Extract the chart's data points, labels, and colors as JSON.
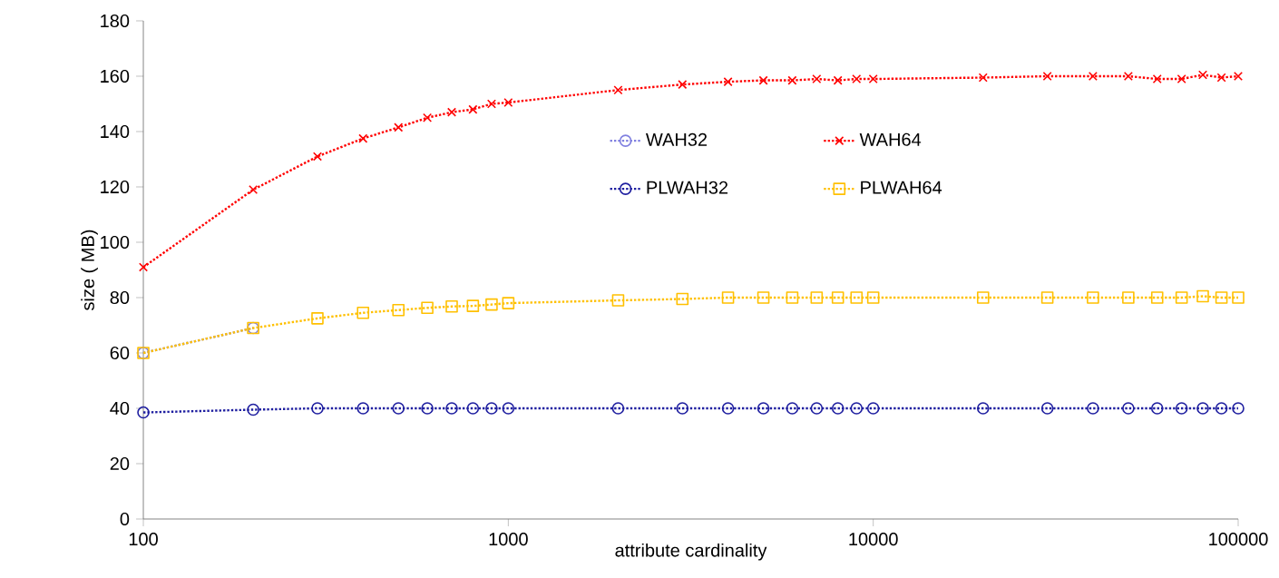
{
  "chart_data": {
    "type": "line",
    "xlabel": "attribute cardinality",
    "ylabel": "size ( MB)",
    "log": "x",
    "legend": "right",
    "line_style": "dotted",
    "x": [
      100,
      200,
      300,
      400,
      500,
      600,
      700,
      800,
      900,
      1000,
      2000,
      3000,
      4000,
      5000,
      6000,
      7000,
      8000,
      9000,
      10000,
      20000,
      30000,
      40000,
      50000,
      60000,
      70000,
      80000,
      90000,
      100000
    ],
    "xlim": [
      100,
      100000
    ],
    "xticks": [
      100,
      1000,
      10000,
      100000
    ],
    "ylim": [
      0,
      180
    ],
    "yticks": [
      0,
      20,
      40,
      60,
      80,
      100,
      120,
      140,
      160,
      180
    ],
    "series": [
      {
        "name": "WAH32",
        "color": "#8080e0",
        "marker": "circle",
        "values": [
          60,
          69,
          null,
          null,
          null,
          null,
          null,
          null,
          null,
          null,
          null,
          null,
          null,
          null,
          null,
          null,
          null,
          null,
          null,
          null,
          null,
          null,
          null,
          null,
          null,
          null,
          null,
          null
        ]
      },
      {
        "name": "WAH64",
        "color": "#ff0000",
        "marker": "cross",
        "values": [
          91,
          119,
          131,
          137.5,
          141.5,
          145,
          147,
          148,
          150,
          150.5,
          155,
          157,
          158,
          158.5,
          158.5,
          159,
          158.5,
          159,
          159,
          159.5,
          160,
          160,
          160,
          159,
          159,
          160.5,
          159.5,
          160
        ]
      },
      {
        "name": "PLWAH32",
        "color": "#1f1fa0",
        "marker": "circle",
        "values": [
          38.5,
          39.5,
          40,
          40,
          40,
          40,
          40,
          40,
          40,
          40,
          40,
          40,
          40,
          40,
          40,
          40,
          40,
          40,
          40,
          40,
          40,
          40,
          40,
          40,
          40,
          40,
          40,
          40
        ]
      },
      {
        "name": "PLWAH64",
        "color": "#ffc000",
        "marker": "square",
        "values": [
          60,
          69,
          72.5,
          74.5,
          75.5,
          76.3,
          76.8,
          77,
          77.5,
          78,
          79,
          79.5,
          80,
          80,
          80,
          80,
          80,
          80,
          80,
          80,
          80,
          80,
          80,
          80,
          80,
          80.5,
          80,
          80
        ]
      }
    ]
  }
}
